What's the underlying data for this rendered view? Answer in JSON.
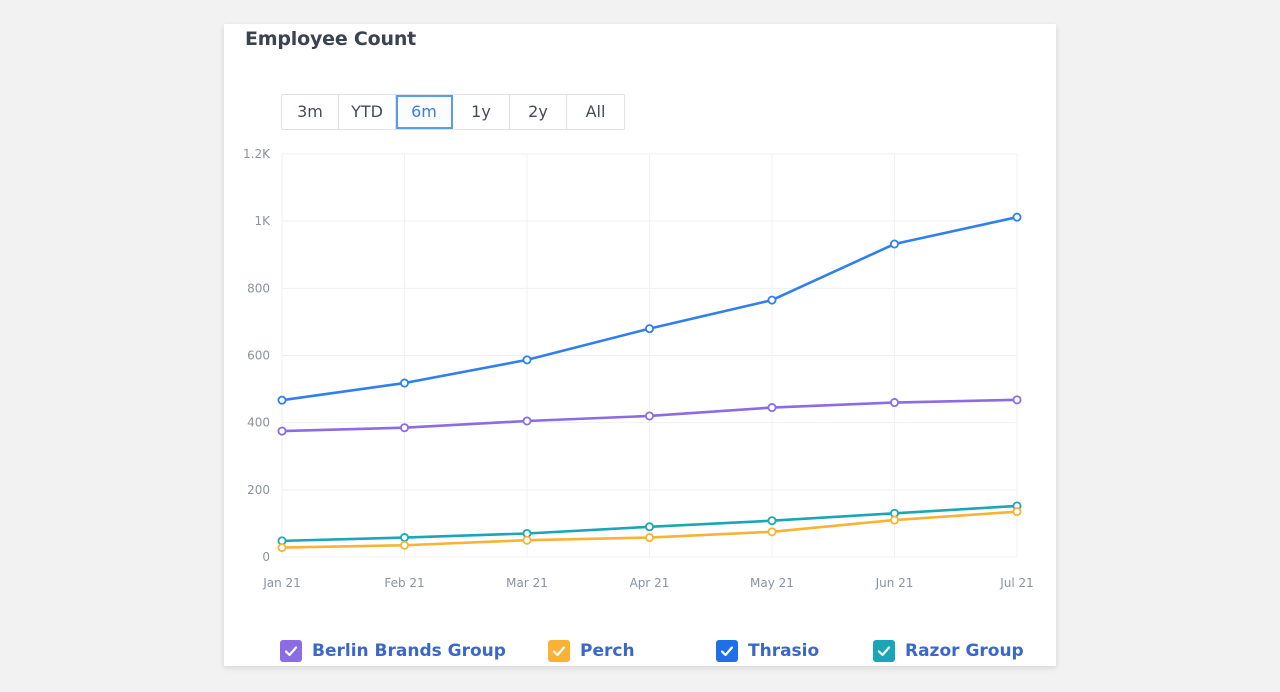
{
  "card": {
    "title": "Employee Count"
  },
  "ranges": [
    {
      "label": "3m",
      "active": false
    },
    {
      "label": "YTD",
      "active": false
    },
    {
      "label": "6m",
      "active": true
    },
    {
      "label": "1y",
      "active": false
    },
    {
      "label": "2y",
      "active": false
    },
    {
      "label": "All",
      "active": false
    }
  ],
  "legend": [
    {
      "label": "Berlin Brands Group",
      "color": "#8b6be6",
      "icon": "check-icon"
    },
    {
      "label": "Perch",
      "color": "#f9b233",
      "icon": "check-icon"
    },
    {
      "label": "Thrasio",
      "color": "#1f6fe5",
      "icon": "check-icon"
    },
    {
      "label": "Razor Group",
      "color": "#1aa6b7",
      "icon": "check-icon"
    }
  ],
  "chart_data": {
    "type": "line",
    "title": "Employee Count",
    "categories": [
      "Jan 21",
      "Feb 21",
      "Mar 21",
      "Apr 21",
      "May 21",
      "Jun 21",
      "Jul 21"
    ],
    "ylim": [
      0,
      1200
    ],
    "yticks": [
      {
        "value": 0,
        "label": "0"
      },
      {
        "value": 200,
        "label": "200"
      },
      {
        "value": 400,
        "label": "400"
      },
      {
        "value": 600,
        "label": "600"
      },
      {
        "value": 800,
        "label": "800"
      },
      {
        "value": 1000,
        "label": "1K"
      },
      {
        "value": 1200,
        "label": "1.2K"
      }
    ],
    "grid": true,
    "legend_position": "bottom",
    "series": [
      {
        "name": "Thrasio",
        "color": "#2f80ed",
        "values": [
          467,
          518,
          587,
          680,
          765,
          932,
          1012
        ]
      },
      {
        "name": "Berlin Brands Group",
        "color": "#8b6be6",
        "values": [
          375,
          385,
          405,
          420,
          445,
          460,
          468
        ]
      },
      {
        "name": "Razor Group",
        "color": "#1aa6b7",
        "values": [
          48,
          58,
          70,
          90,
          108,
          130,
          152
        ]
      },
      {
        "name": "Perch",
        "color": "#f9b233",
        "values": [
          28,
          35,
          50,
          58,
          75,
          110,
          135
        ]
      }
    ]
  }
}
